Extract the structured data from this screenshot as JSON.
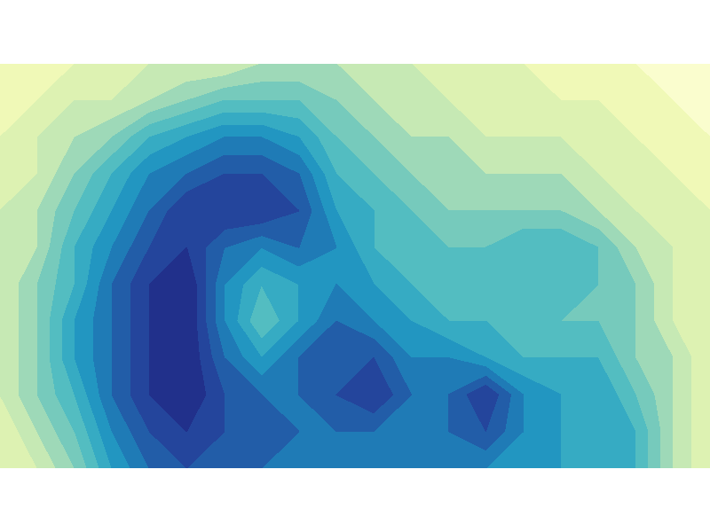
{
  "chart_data": {
    "type": "contour",
    "tick_labels": false,
    "levels": [
      -1,
      0,
      1,
      2,
      3,
      4,
      5,
      6,
      7,
      8,
      9,
      10,
      11,
      12,
      13
    ],
    "cells": [
      [
        1,
        1,
        1,
        1,
        2,
        2,
        2,
        3,
        3,
        3,
        2,
        2,
        2,
        1,
        1,
        1,
        0,
        0,
        0,
        0
      ],
      [
        1,
        1,
        2,
        2,
        3,
        4,
        5,
        5,
        5,
        4,
        3,
        3,
        2,
        2,
        2,
        1,
        1,
        1,
        0,
        0
      ],
      [
        1,
        2,
        3,
        4,
        6,
        7,
        8,
        8,
        7,
        5,
        4,
        3,
        3,
        2,
        2,
        2,
        2,
        1,
        1,
        0
      ],
      [
        1,
        2,
        4,
        6,
        8,
        9,
        10,
        10,
        9,
        6,
        5,
        4,
        4,
        3,
        3,
        3,
        2,
        2,
        1,
        1
      ],
      [
        2,
        3,
        5,
        7,
        9,
        11,
        11,
        11,
        10,
        7,
        6,
        5,
        4,
        4,
        4,
        4,
        3,
        2,
        2,
        1
      ],
      [
        2,
        3,
        6,
        8,
        10,
        11,
        9,
        8,
        9,
        8,
        6,
        6,
        5,
        5,
        6,
        6,
        5,
        3,
        2,
        1
      ],
      [
        2,
        4,
        6,
        9,
        11,
        12,
        8,
        6,
        7,
        8,
        7,
        6,
        6,
        6,
        6,
        6,
        5,
        4,
        2,
        1
      ],
      [
        2,
        4,
        7,
        9,
        11,
        12,
        8,
        5,
        7,
        9,
        8,
        7,
        6,
        6,
        6,
        5,
        5,
        4,
        2,
        1
      ],
      [
        2,
        4,
        7,
        9,
        11,
        12,
        9,
        7,
        9,
        10,
        10,
        8,
        8,
        7,
        6,
        6,
        6,
        4,
        3,
        1
      ],
      [
        2,
        4,
        6,
        9,
        11,
        12,
        10,
        9,
        9,
        10,
        11,
        9,
        9,
        11,
        8,
        7,
        7,
        5,
        3,
        1
      ],
      [
        1,
        3,
        5,
        8,
        10,
        11,
        10,
        10,
        9,
        9,
        9,
        9,
        9,
        10,
        8,
        7,
        7,
        6,
        3,
        1
      ],
      [
        1,
        2,
        4,
        7,
        9,
        10,
        9,
        9,
        8,
        8,
        8,
        8,
        8,
        8,
        8,
        7,
        7,
        6,
        3,
        1
      ]
    ]
  }
}
